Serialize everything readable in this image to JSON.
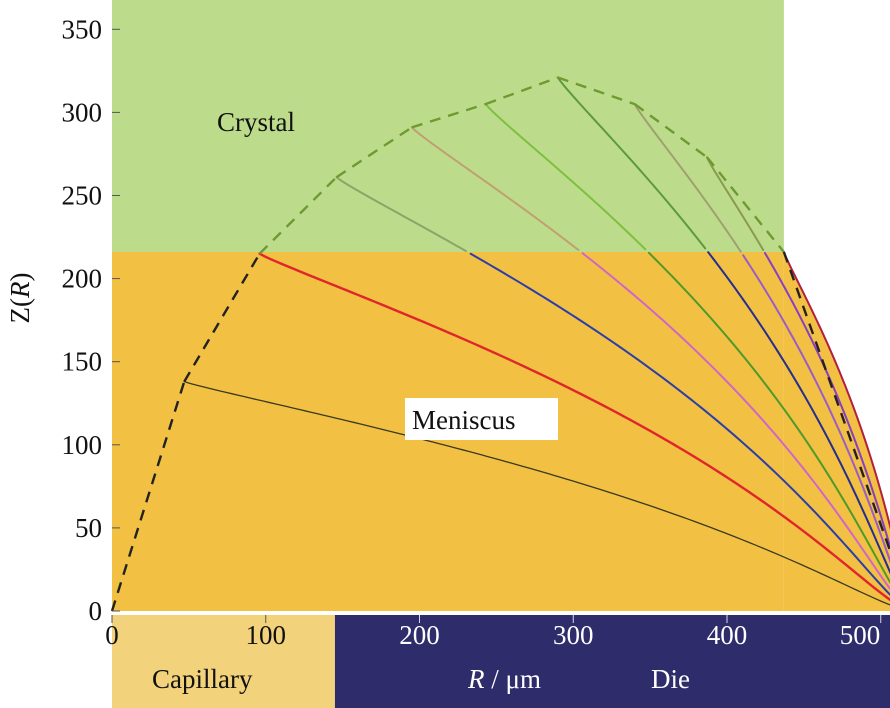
{
  "chart_data": {
    "type": "line",
    "title": "",
    "xlabel_var": "R",
    "xlabel_unit": " / μm",
    "ylabel_var": "R",
    "ylabel_text": "Z(R)",
    "xlim": [
      0,
      520
    ],
    "ylim": [
      0,
      350
    ],
    "x_ticks": [
      0,
      100,
      200,
      300,
      400,
      500
    ],
    "y_ticks": [
      0,
      50,
      100,
      150,
      200,
      250,
      300,
      350
    ],
    "regions": {
      "crystal": {
        "label": "Crystal",
        "y_from": 216,
        "y_to": 365,
        "x_from": 0,
        "x_to": 437,
        "color": "#bcdc8c"
      },
      "meniscus": {
        "label": "Meniscus",
        "y_from": 0,
        "y_to": 216,
        "x_from": 0,
        "x_to": 437,
        "color": "#f2c043"
      },
      "capillary": {
        "label": "Capillary",
        "x_from": 0,
        "x_to": 145,
        "color": "#f2d27a"
      },
      "die": {
        "label": "Die",
        "x_from": 145,
        "x_to": 520,
        "color": "#2e2c6b"
      }
    },
    "dashed_outline": {
      "color_lower": "#222222",
      "color_upper": "#6f9a32",
      "points": [
        [
          0,
          0
        ],
        [
          47,
          138
        ],
        [
          96,
          215
        ],
        [
          146,
          261
        ],
        [
          195,
          291
        ],
        [
          243,
          305
        ],
        [
          290,
          321
        ],
        [
          340,
          305
        ],
        [
          387,
          273
        ],
        [
          437,
          216
        ],
        [
          520,
          0
        ]
      ]
    },
    "series": [
      {
        "start": [
          47,
          138
        ],
        "break_y": 138,
        "color": "#3a3a20",
        "upper_color": "#3a3a20",
        "width": 1.3
      },
      {
        "start": [
          96,
          215
        ],
        "break_y": 215,
        "color": "#e0262a",
        "upper_color": "#e0262a",
        "width": 2.4
      },
      {
        "start": [
          146,
          261
        ],
        "break_y": 216,
        "color": "#2c3ea8",
        "upper_color": "#8aa56a",
        "width": 2.0
      },
      {
        "start": [
          195,
          291
        ],
        "break_y": 216,
        "color": "#d066c8",
        "upper_color": "#c0a070",
        "width": 2.0
      },
      {
        "start": [
          243,
          305
        ],
        "break_y": 216,
        "color": "#4e9a2a",
        "upper_color": "#7dc040",
        "width": 2.0
      },
      {
        "start": [
          290,
          321
        ],
        "break_y": 216,
        "color": "#262e8e",
        "upper_color": "#5c9a3a",
        "width": 2.0
      },
      {
        "start": [
          340,
          305
        ],
        "break_y": 216,
        "color": "#9a5cc8",
        "upper_color": "#a0a070",
        "width": 2.0
      },
      {
        "start": [
          387,
          273
        ],
        "break_y": 216,
        "color": "#8a3ec0",
        "upper_color": "#8a9a50",
        "width": 2.0
      },
      {
        "start": [
          437,
          216
        ],
        "break_y": 216,
        "color": "#b02040",
        "upper_color": "#b02040",
        "width": 2.0
      }
    ],
    "end_point": [
      520,
      0
    ],
    "legend": "none",
    "grid": false
  }
}
